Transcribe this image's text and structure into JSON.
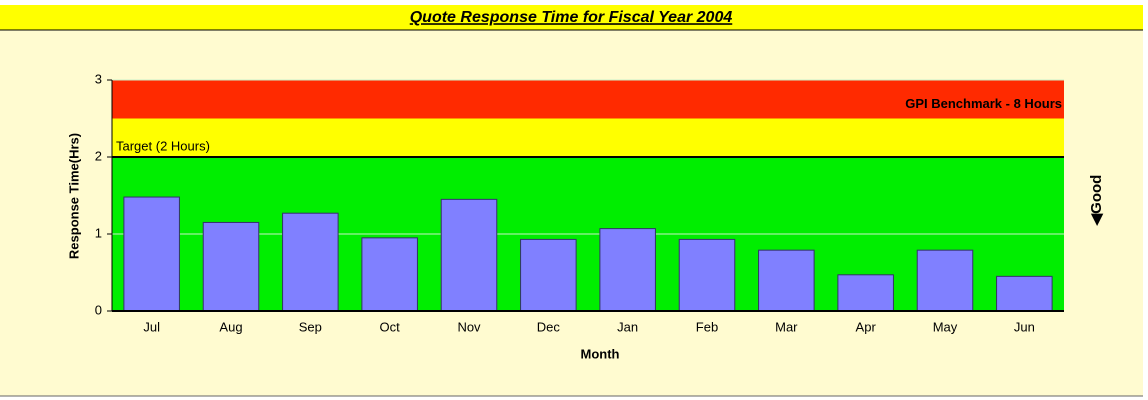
{
  "chart_data": {
    "type": "bar",
    "title": "Quote Response Time for Fiscal Year 2004",
    "x_label": "Month",
    "y_label": "Response Time(Hrs)",
    "side_label": "◀Good",
    "categories": [
      "Jul",
      "Aug",
      "Sep",
      "Oct",
      "Nov",
      "Dec",
      "Jan",
      "Feb",
      "Mar",
      "Apr",
      "May",
      "Jun"
    ],
    "values": [
      1.48,
      1.15,
      1.27,
      0.95,
      1.45,
      0.93,
      1.07,
      0.93,
      0.79,
      0.47,
      0.79,
      0.45
    ],
    "color": "#8080ff",
    "ylim": [
      0,
      3
    ],
    "yticks": [
      0,
      1,
      2,
      3
    ],
    "grid": true,
    "bands": [
      {
        "from": 0,
        "to": 2,
        "color": "#00ee00"
      },
      {
        "from": 2,
        "to": 2.5,
        "color": "#ffff00"
      },
      {
        "from": 2.5,
        "to": 3,
        "color": "#ff2a00"
      }
    ],
    "target": {
      "value": 2,
      "label": "Target (2 Hours)"
    },
    "benchmark_label": "GPI Benchmark - 8 Hours"
  }
}
